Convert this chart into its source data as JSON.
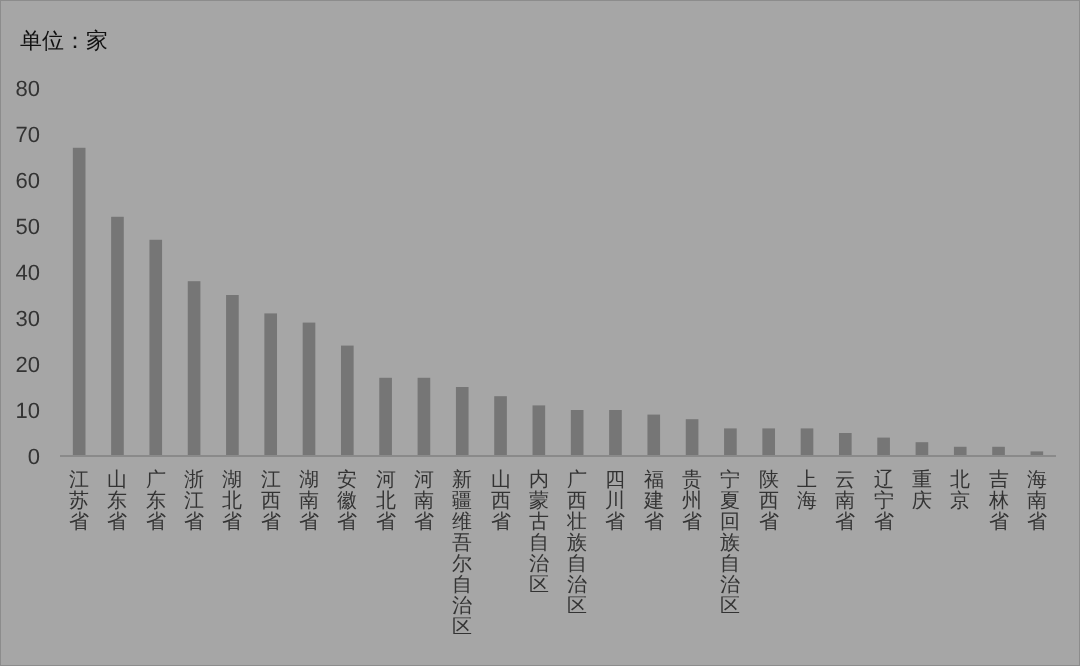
{
  "chart_data": {
    "type": "bar",
    "ylabel": "单位：家",
    "categories": [
      "江苏省",
      "山东省",
      "广东省",
      "浙江省",
      "湖北省",
      "江西省",
      "湖南省",
      "安徽省",
      "河北省",
      "河南省",
      "新疆维吾尔自治区",
      "山西省",
      "内蒙古自治区",
      "广西壮族自治区",
      "四川省",
      "福建省",
      "贵州省",
      "宁夏回族自治区",
      "陕西省",
      "上海",
      "云南省",
      "辽宁省",
      "重庆",
      "北京",
      "吉林省",
      "海南省"
    ],
    "values": [
      67,
      52,
      47,
      38,
      35,
      31,
      29,
      24,
      17,
      17,
      15,
      13,
      11,
      10,
      10,
      9,
      8,
      6,
      6,
      6,
      5,
      4,
      3,
      2,
      2,
      1
    ],
    "color": "#767676",
    "ylim": [
      0,
      80
    ],
    "yticks": [
      0,
      10,
      20,
      30,
      40,
      50,
      60,
      70,
      80
    ],
    "grid": false
  }
}
